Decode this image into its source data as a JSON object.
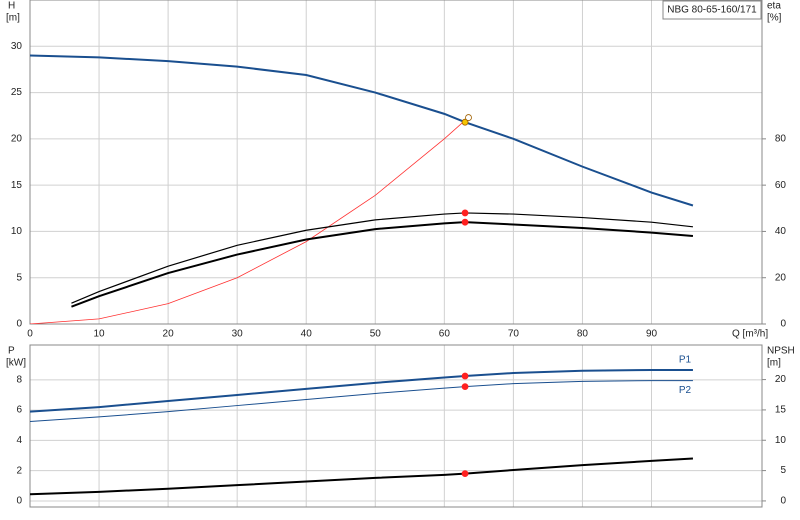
{
  "chart_data": [
    {
      "type": "line",
      "title": "NBG 80-65-160/171",
      "ylabel": "H",
      "yunit": "[m]",
      "y2label": "eta",
      "y2unit": "[%]",
      "xlabel": "Q [m³/h]",
      "xlim": [
        0,
        106
      ],
      "xticks": [
        0,
        10,
        20,
        30,
        40,
        50,
        60,
        70,
        80,
        90
      ],
      "ylim": [
        0,
        35
      ],
      "yticks": [
        0,
        5,
        10,
        15,
        20,
        25,
        30
      ],
      "y2lim": [
        0,
        140
      ],
      "y2ticks": [
        0,
        20,
        40,
        60,
        80
      ],
      "grid": true,
      "series": [
        {
          "color": "#1a4f8f",
          "x": [
            0,
            10,
            20,
            30,
            40,
            50,
            60,
            63,
            70,
            80,
            90,
            96
          ],
          "values": [
            29,
            28.8,
            28.4,
            27.8,
            26.9,
            25,
            22.7,
            21.8,
            20,
            17,
            14.2,
            12.8
          ]
        },
        {
          "color": "#ff3030",
          "x": [
            0,
            10,
            20,
            30,
            40,
            50,
            60,
            63
          ],
          "values": [
            0,
            0.55,
            2.2,
            5,
            8.9,
            13.9,
            20,
            22
          ]
        },
        {
          "color": "#000000",
          "axis": "y2",
          "x": [
            6,
            10,
            20,
            30,
            40,
            50,
            60,
            63,
            70,
            80,
            90,
            96
          ],
          "values": [
            9,
            14,
            25,
            34,
            40.5,
            45,
            47.5,
            48,
            47.5,
            46,
            44,
            42
          ]
        },
        {
          "color": "#000000",
          "axis": "y2",
          "x": [
            6,
            10,
            20,
            30,
            40,
            50,
            60,
            63,
            70,
            80,
            90,
            96
          ],
          "values": [
            7.5,
            12,
            22,
            30,
            36.5,
            41,
            43.5,
            44,
            43,
            41.5,
            39.5,
            38
          ]
        }
      ],
      "points": [
        {
          "x": 63,
          "y": 21.8,
          "color": "#f5c400"
        },
        {
          "x": 63.5,
          "y": 22.3,
          "color": "#ffffff"
        },
        {
          "x": 63,
          "y": 48,
          "axis": "y2",
          "color": "#ff2020"
        },
        {
          "x": 63,
          "y": 44,
          "axis": "y2",
          "color": "#ff2020"
        }
      ]
    },
    {
      "type": "line",
      "ylabel": "P",
      "yunit": "[kW]",
      "y2label": "NPSH",
      "y2unit": "[m]",
      "xlim": [
        0,
        106
      ],
      "xticks": [
        0,
        10,
        20,
        30,
        40,
        50,
        60,
        70,
        80,
        90
      ],
      "ylim": [
        -0.4,
        10.3
      ],
      "yticks": [
        0,
        2,
        4,
        6,
        8
      ],
      "y2lim": [
        -1,
        25.7
      ],
      "y2ticks": [
        0,
        5,
        10,
        15,
        20
      ],
      "grid": true,
      "series": [
        {
          "name": "P1",
          "color": "#1a4f8f",
          "x": [
            0,
            10,
            20,
            30,
            40,
            50,
            60,
            63,
            70,
            80,
            90,
            96
          ],
          "values": [
            5.9,
            6.2,
            6.6,
            7,
            7.4,
            7.8,
            8.15,
            8.25,
            8.45,
            8.6,
            8.65,
            8.65
          ]
        },
        {
          "name": "P2",
          "color": "#1a4f8f",
          "x": [
            0,
            10,
            20,
            30,
            40,
            50,
            60,
            63,
            70,
            80,
            90,
            96
          ],
          "values": [
            5.25,
            5.55,
            5.9,
            6.3,
            6.7,
            7.1,
            7.45,
            7.55,
            7.75,
            7.9,
            7.95,
            7.95
          ]
        },
        {
          "color": "#000000",
          "axis": "y2",
          "x": [
            0,
            10,
            20,
            30,
            40,
            50,
            60,
            63,
            70,
            80,
            90,
            96
          ],
          "values": [
            1.1,
            1.5,
            2,
            2.6,
            3.2,
            3.8,
            4.3,
            4.5,
            5.1,
            5.9,
            6.6,
            7
          ]
        }
      ],
      "points": [
        {
          "x": 63,
          "y": 8.25,
          "color": "#ff2020"
        },
        {
          "x": 63,
          "y": 7.55,
          "color": "#ff2020"
        },
        {
          "x": 63,
          "y": 4.5,
          "axis": "y2",
          "color": "#ff2020"
        }
      ]
    }
  ]
}
